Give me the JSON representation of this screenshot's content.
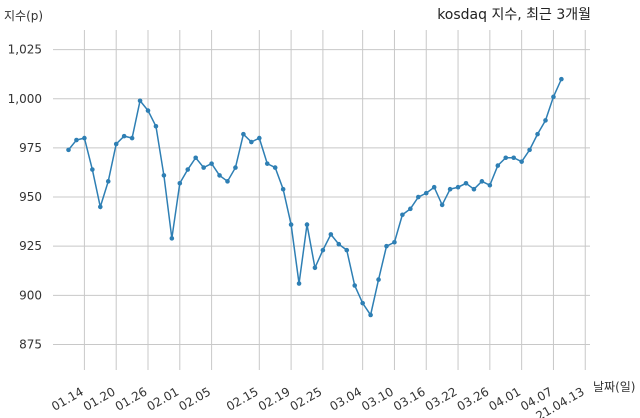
{
  "chart_data": {
    "type": "line",
    "title": "kosdaq 지수, 최근 3개월",
    "xlabel": "날짜(일)",
    "ylabel": "지수(p)",
    "ylim": [
      862,
      1035
    ],
    "yticks": [
      875,
      900,
      925,
      950,
      975,
      1000,
      1025
    ],
    "ytick_labels": [
      "875",
      "900",
      "925",
      "950",
      "975",
      "1,000",
      "1,025"
    ],
    "grid": true,
    "colors": {
      "line": "#2e7fb4",
      "grid": "#c8c8c8"
    },
    "x_tick_labels": [
      "01.14",
      "01.20",
      "01.26",
      "02.01",
      "02.05",
      "02.15",
      "02.19",
      "02.25",
      "03.04",
      "03.10",
      "03.16",
      "03.22",
      "03.26",
      "04.01",
      "04.07",
      "21.04.13"
    ],
    "x_tick_indices": [
      2,
      6,
      10,
      14,
      18,
      24,
      28,
      32,
      37,
      41,
      45,
      49,
      53,
      57,
      61,
      65
    ],
    "series": [
      {
        "values": [
          974,
          979,
          980,
          964,
          945,
          958,
          977,
          981,
          980,
          999,
          994,
          986,
          961,
          929,
          957,
          964,
          970,
          965,
          967,
          961,
          958,
          965,
          982,
          978,
          980,
          967,
          965,
          954,
          936,
          906,
          936,
          914,
          923,
          931,
          926,
          923,
          905,
          896,
          890,
          908,
          925,
          927,
          941,
          944,
          950,
          952,
          955,
          946,
          954,
          955,
          957,
          954,
          958,
          956,
          966,
          970,
          970,
          968,
          974,
          982,
          989,
          1001,
          1010
        ]
      }
    ]
  }
}
